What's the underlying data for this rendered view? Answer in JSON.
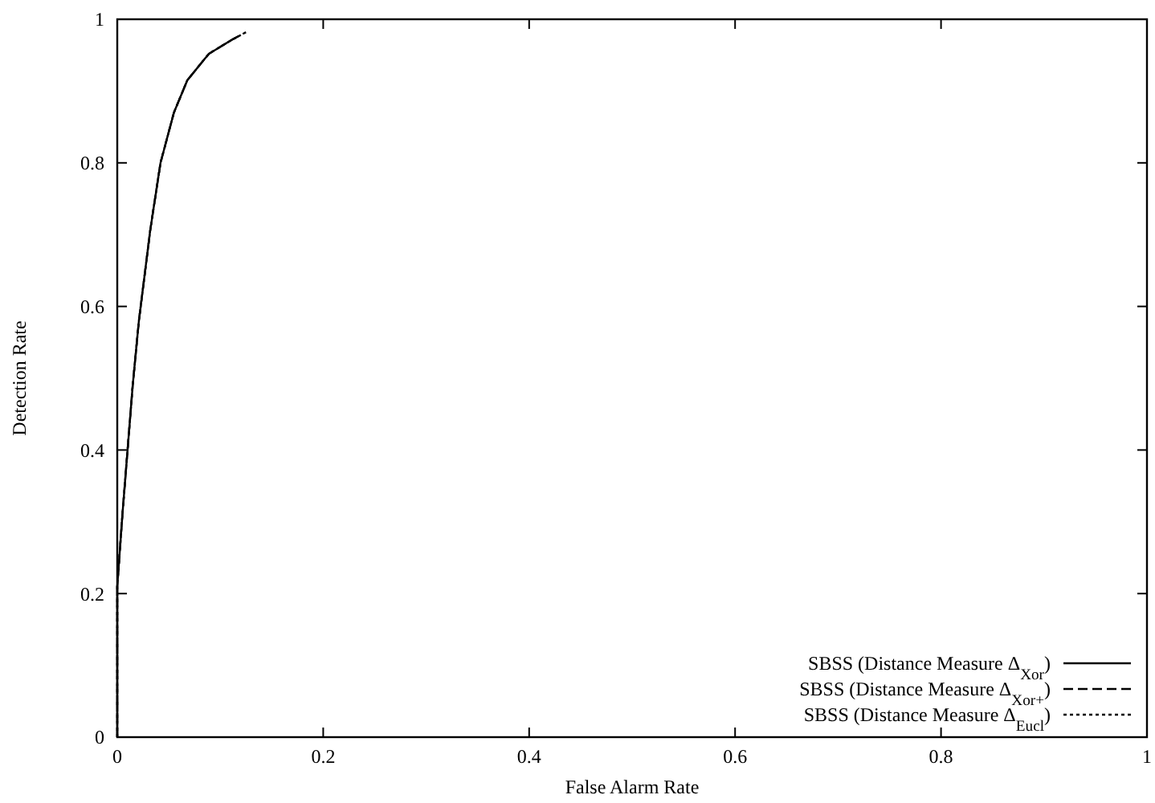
{
  "chart_data": {
    "type": "line",
    "xlabel": "False Alarm Rate",
    "ylabel": "Detection Rate",
    "xlim": [
      0,
      1
    ],
    "ylim": [
      0,
      1
    ],
    "xticks": [
      0,
      0.2,
      0.4,
      0.6,
      0.8,
      1
    ],
    "yticks": [
      0,
      0.2,
      0.4,
      0.6,
      0.8,
      1
    ],
    "grid": false,
    "legend": "bottom right",
    "marker": "none",
    "series": [
      {
        "name": "SBSS (Distance Measure Δ$_{Xor}$)",
        "color": "#000000",
        "line_style": "solid",
        "x": [
          0,
          0,
          0.005,
          0.01,
          0.015,
          0.021,
          0.032,
          0.042,
          0.055,
          0.068,
          0.089,
          0.112,
          0.12
        ],
        "values": [
          0,
          0.21,
          0.31,
          0.4,
          0.49,
          0.58,
          0.706,
          0.8,
          0.87,
          0.915,
          0.952,
          0.972,
          0.978
        ]
      },
      {
        "name": "SBSS (Distance Measure Δ$_{Xor+}$)",
        "color": "#000000",
        "line_style": "dashed",
        "x": [
          0,
          0,
          0.005,
          0.01,
          0.015,
          0.021,
          0.032,
          0.042,
          0.055,
          0.068,
          0.089,
          0.112,
          0.125
        ],
        "values": [
          0,
          0.21,
          0.31,
          0.4,
          0.49,
          0.58,
          0.706,
          0.8,
          0.87,
          0.915,
          0.952,
          0.972,
          0.982
        ]
      },
      {
        "name": "SBSS (Distance Measure Δ$_{Eucl}$)",
        "color": "#000000",
        "line_style": "dotted",
        "x": [
          0,
          0,
          0.005,
          0.01,
          0.015,
          0.021,
          0.032,
          0.042,
          0.055,
          0.068,
          0.089,
          0.112,
          0.118
        ],
        "values": [
          0,
          0.21,
          0.31,
          0.4,
          0.49,
          0.58,
          0.706,
          0.8,
          0.87,
          0.915,
          0.952,
          0.972,
          0.976
        ]
      }
    ]
  }
}
